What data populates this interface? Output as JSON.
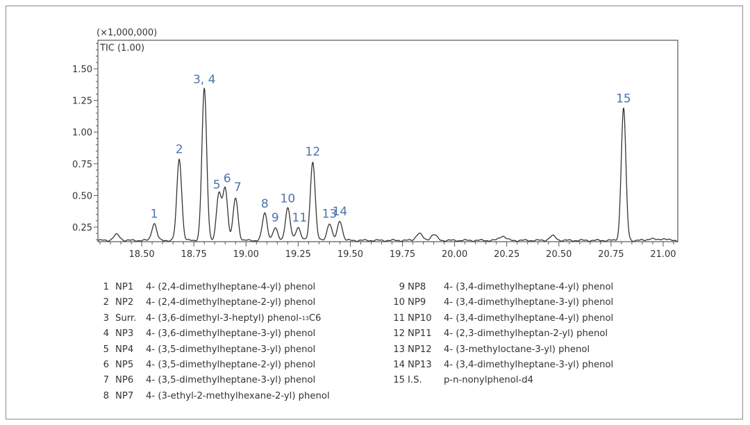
{
  "chart_data": {
    "type": "line",
    "multiplier_label": "(×1,000,000)",
    "trace_label": "TIC (1.00)",
    "xlim": [
      18.29,
      21.07
    ],
    "ylim": [
      0.135,
      1.725
    ],
    "x_ticks": [
      "18.50",
      "18.75",
      "19.00",
      "19.25",
      "19.50",
      "19.75",
      "20.00",
      "20.25",
      "20.50",
      "20.75",
      "21.00"
    ],
    "y_ticks": [
      "0.25",
      "0.50",
      "0.75",
      "1.00",
      "1.25",
      "1.50"
    ],
    "baseline": 0.145,
    "line_color": "#333333",
    "label_color": "#4a74a8",
    "peaks": [
      {
        "label": "1",
        "rt": 18.56,
        "height": 0.28
      },
      {
        "label": "2",
        "rt": 18.68,
        "height": 0.79
      },
      {
        "label": "3, 4",
        "rt": 18.8,
        "height": 1.34
      },
      {
        "label": "5",
        "rt": 18.87,
        "height": 0.51
      },
      {
        "label": "6",
        "rt": 18.9,
        "height": 0.56
      },
      {
        "label": "7",
        "rt": 18.95,
        "height": 0.48
      },
      {
        "label": "8",
        "rt": 19.09,
        "height": 0.36
      },
      {
        "label": "9",
        "rt": 19.14,
        "height": 0.24
      },
      {
        "label": "10",
        "rt": 19.2,
        "height": 0.4
      },
      {
        "label": "11",
        "rt": 19.25,
        "height": 0.25
      },
      {
        "label": "12",
        "rt": 19.32,
        "height": 0.77
      },
      {
        "label": "13",
        "rt": 19.4,
        "height": 0.28
      },
      {
        "label": "14",
        "rt": 19.45,
        "height": 0.3
      },
      {
        "label": "15",
        "rt": 20.81,
        "height": 1.19
      }
    ],
    "minor_peaks": [
      {
        "rt": 18.38,
        "height": 0.19
      },
      {
        "rt": 19.83,
        "height": 0.2
      },
      {
        "rt": 19.9,
        "height": 0.19
      },
      {
        "rt": 20.23,
        "height": 0.18
      },
      {
        "rt": 20.47,
        "height": 0.18
      },
      {
        "rt": 20.94,
        "height": 0.16
      },
      {
        "rt": 21.0,
        "height": 0.16
      }
    ]
  },
  "legend": {
    "left": [
      {
        "num": "1",
        "code": "NP1",
        "name": "4- (2,4-dimethylheptane-4-yl) phenol"
      },
      {
        "num": "2",
        "code": "NP2",
        "name": "4- (2,4-dimethylheptane-2-yl) phenol"
      },
      {
        "num": "3",
        "code": "Surr.",
        "name": "4- (3,6-dimethyl-3-heptyl) phenol-",
        "sup": "13",
        "sub": "C6"
      },
      {
        "num": "4",
        "code": "NP3",
        "name": "4- (3,6-dimethylheptane-3-yl) phenol"
      },
      {
        "num": "5",
        "code": "NP4",
        "name": "4- (3,5-dimethylheptane-3-yl) phenol"
      },
      {
        "num": "6",
        "code": "NP5",
        "name": "4- (3,5-dimethylheptane-2-yl) phenol"
      },
      {
        "num": "7",
        "code": "NP6",
        "name": "4- (3,5-dimethylheptane-3-yl) phenol"
      },
      {
        "num": "8",
        "code": "NP7",
        "name": "4- (3-ethyl-2-methylhexane-2-yl) phenol"
      }
    ],
    "right": [
      {
        "num": "9",
        "code": "NP8",
        "name": "4- (3,4-dimethylheptane-4-yl) phenol"
      },
      {
        "num": "10",
        "code": "NP9",
        "name": "4- (3,4-dimethylheptane-3-yl) phenol"
      },
      {
        "num": "11",
        "code": "NP10",
        "name": "4- (3,4-dimethylheptane-4-yl) phenol"
      },
      {
        "num": "12",
        "code": "NP11",
        "name": "4- (2,3-dimethylheptan-2-yl) phenol"
      },
      {
        "num": "13",
        "code": "NP12",
        "name": "4- (3-methyloctane-3-yl) phenol"
      },
      {
        "num": "14",
        "code": "NP13",
        "name": "4- (3,4-dimethylheptane-3-yl) phenol"
      },
      {
        "num": "15",
        "code": "I.S.",
        "name": "p-n-nonylphenol-d4"
      }
    ]
  }
}
